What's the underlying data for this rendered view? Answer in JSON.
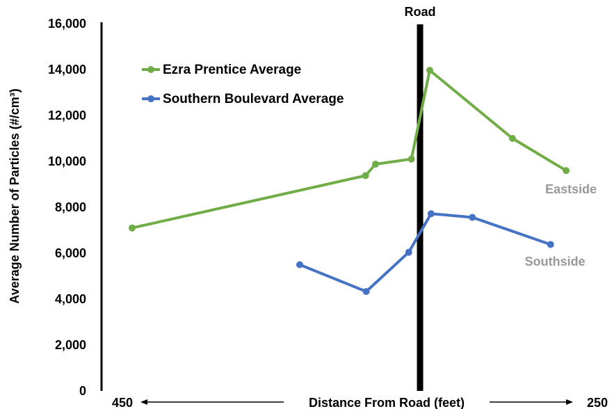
{
  "chart_data": {
    "type": "line",
    "ylabel": "Average Number of Particles (#/cm³)",
    "xlabel": "Distance From Road (feet)",
    "x_end_labels": {
      "left": "450",
      "right": "250"
    },
    "ylim": [
      0,
      16000
    ],
    "yticks": [
      0,
      2000,
      4000,
      6000,
      8000,
      10000,
      12000,
      14000,
      16000
    ],
    "ytick_labels": [
      "0",
      "2,000",
      "4,000",
      "6,000",
      "8,000",
      "10,000",
      "12,000",
      "14,000",
      "16,000"
    ],
    "x_axis_note": "signed distance, road at 0; left side up to 450 ft, right side up to 250 ft",
    "xlim": [
      -450,
      250
    ],
    "road_x": 0,
    "road_label": "Road",
    "series": [
      {
        "name": "Ezra Prentice Average",
        "color": "#70ad47",
        "points": [
          {
            "x": -433,
            "y": 7100
          },
          {
            "x": -82,
            "y": 9380
          },
          {
            "x": -67,
            "y": 9880
          },
          {
            "x": -13,
            "y": 10100
          },
          {
            "x": 15,
            "y": 13970
          },
          {
            "x": 143,
            "y": 11000
          },
          {
            "x": 226,
            "y": 9600
          }
        ],
        "end_label": "Eastside",
        "end_label_color": "#999999"
      },
      {
        "name": "Southern Boulevard Average",
        "color": "#4472c4",
        "points": [
          {
            "x": -181,
            "y": 5500
          },
          {
            "x": -81,
            "y": 4330
          },
          {
            "x": -17,
            "y": 6040
          },
          {
            "x": 17,
            "y": 7720
          },
          {
            "x": 81,
            "y": 7560
          },
          {
            "x": 202,
            "y": 6380
          }
        ],
        "end_label": "Southside",
        "end_label_color": "#999999"
      }
    ],
    "legend": "top-left"
  }
}
